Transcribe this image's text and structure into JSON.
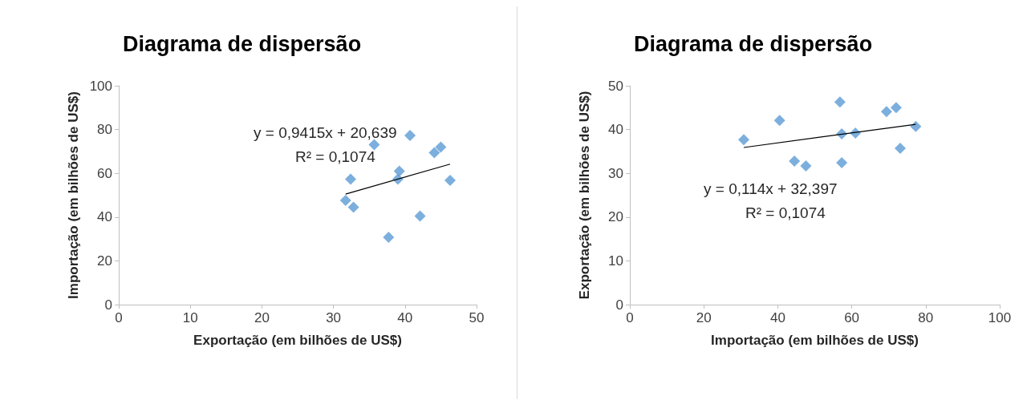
{
  "chart_data": [
    {
      "type": "scatter",
      "title": "Diagrama de dispersão",
      "xlabel": "Exportação (em bilhões de US$)",
      "ylabel": "Importação (em bilhões de US$)",
      "xlim": [
        0,
        50
      ],
      "xticks": [
        0,
        10,
        20,
        30,
        40,
        50
      ],
      "ylim": [
        0,
        100
      ],
      "yticks": [
        0,
        20,
        40,
        60,
        80,
        100
      ],
      "grid": false,
      "annotations": [
        "y = 0,9415x + 20,639",
        "R² = 0,1074"
      ],
      "series": [
        {
          "marker": "diamond",
          "color": "#5b9bd5",
          "x": [
            37.7,
            42.1,
            32.8,
            31.7,
            46.3,
            39.0,
            32.4,
            39.2,
            44.1,
            45.0,
            35.7,
            40.7
          ],
          "values": [
            30.8,
            40.5,
            44.5,
            47.6,
            56.8,
            57.3,
            57.3,
            61.0,
            69.4,
            72.0,
            73.1,
            77.3
          ]
        },
        {
          "type": "line",
          "marker": "none",
          "color": "#000000",
          "x": [
            31.7,
            46.3
          ],
          "values": [
            50.5,
            64.2
          ]
        }
      ]
    },
    {
      "type": "scatter",
      "title": "Diagrama de dispersão",
      "xlabel": "Importação (em bilhões de US$)",
      "ylabel": "Exportação (em bilhões de US$)",
      "xlim": [
        0,
        100
      ],
      "xticks": [
        0,
        20,
        40,
        60,
        80,
        100
      ],
      "ylim": [
        0,
        50
      ],
      "yticks": [
        0,
        10,
        20,
        30,
        40,
        50
      ],
      "grid": false,
      "annotations": [
        "y = 0,114x + 32,397",
        "R² = 0,1074"
      ],
      "series": [
        {
          "marker": "diamond",
          "color": "#5b9bd5",
          "x": [
            30.8,
            40.5,
            44.5,
            47.6,
            56.8,
            57.3,
            57.3,
            61.0,
            69.4,
            72.0,
            73.1,
            77.3
          ],
          "values": [
            37.7,
            42.1,
            32.8,
            31.7,
            46.3,
            39.0,
            32.4,
            39.2,
            44.1,
            45.0,
            35.7,
            40.7
          ]
        },
        {
          "type": "line",
          "marker": "none",
          "color": "#000000",
          "x": [
            30.8,
            77.3
          ],
          "values": [
            35.9,
            41.2
          ]
        }
      ]
    }
  ]
}
